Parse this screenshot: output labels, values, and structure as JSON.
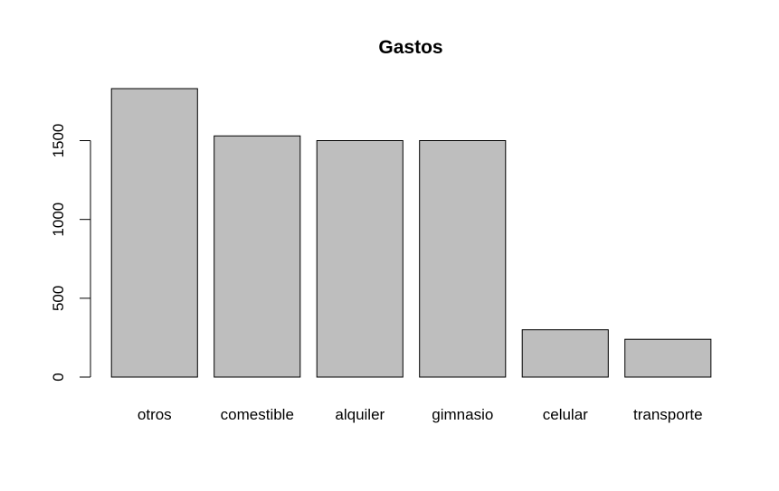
{
  "chart_data": {
    "type": "bar",
    "title": "Gastos",
    "xlabel": "",
    "ylabel": "",
    "categories": [
      "otros",
      "comestible",
      "alquiler",
      "gimnasio",
      "celular",
      "transporte"
    ],
    "values": [
      1830,
      1530,
      1500,
      1500,
      300,
      240
    ],
    "ylim": [
      0,
      1830
    ],
    "yticks": [
      0,
      500,
      1000,
      1500
    ],
    "ytick_labels": [
      "0",
      "500",
      "1000",
      "1500"
    ],
    "bar_color": "#bebebe",
    "grid": false,
    "legend": "none"
  }
}
